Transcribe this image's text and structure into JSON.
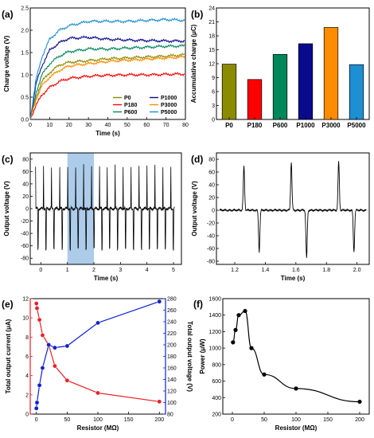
{
  "chart_data": [
    {
      "panel": "(a)",
      "type": "line",
      "xlabel": "Time (s)",
      "ylabel": "Charge voltage (V)",
      "xlim": [
        0,
        80
      ],
      "ylim": [
        0,
        2.5
      ],
      "xticks": [
        "0",
        "10",
        "20",
        "30",
        "40",
        "50",
        "60",
        "70",
        "80"
      ],
      "yticks": [
        "0.0",
        "0.5",
        "1.0",
        "1.5",
        "2.0",
        "2.5"
      ],
      "legend_position": "bottom-right",
      "legend_columns": 2,
      "series": [
        {
          "name": "P0",
          "color": "#8b8b00",
          "values": [
            [
              0,
              0
            ],
            [
              3,
              0.5
            ],
            [
              6,
              0.85
            ],
            [
              10,
              1.05
            ],
            [
              15,
              1.22
            ],
            [
              20,
              1.28
            ],
            [
              30,
              1.32
            ],
            [
              40,
              1.36
            ],
            [
              50,
              1.38
            ],
            [
              60,
              1.4
            ],
            [
              70,
              1.42
            ],
            [
              80,
              1.45
            ]
          ]
        },
        {
          "name": "P180",
          "color": "#ff0000",
          "values": [
            [
              0,
              0
            ],
            [
              3,
              0.32
            ],
            [
              6,
              0.55
            ],
            [
              10,
              0.72
            ],
            [
              15,
              0.85
            ],
            [
              20,
              0.92
            ],
            [
              30,
              0.97
            ],
            [
              40,
              0.99
            ],
            [
              50,
              1.0
            ],
            [
              60,
              1.0
            ],
            [
              70,
              1.01
            ],
            [
              80,
              1.02
            ]
          ]
        },
        {
          "name": "P600",
          "color": "#00875a",
          "values": [
            [
              0,
              0
            ],
            [
              3,
              0.6
            ],
            [
              6,
              1.0
            ],
            [
              10,
              1.25
            ],
            [
              15,
              1.42
            ],
            [
              20,
              1.52
            ],
            [
              30,
              1.58
            ],
            [
              40,
              1.58
            ],
            [
              50,
              1.6
            ],
            [
              60,
              1.62
            ],
            [
              70,
              1.64
            ],
            [
              80,
              1.65
            ]
          ]
        },
        {
          "name": "P1000",
          "color": "#0a0a8c",
          "values": [
            [
              0,
              0
            ],
            [
              3,
              0.8
            ],
            [
              6,
              1.2
            ],
            [
              10,
              1.55
            ],
            [
              15,
              1.72
            ],
            [
              20,
              1.82
            ],
            [
              30,
              1.84
            ],
            [
              40,
              1.8
            ],
            [
              50,
              1.78
            ],
            [
              60,
              1.77
            ],
            [
              70,
              1.76
            ],
            [
              80,
              1.76
            ]
          ]
        },
        {
          "name": "P3000",
          "color": "#ff8c00",
          "values": [
            [
              0,
              0
            ],
            [
              3,
              0.45
            ],
            [
              6,
              0.75
            ],
            [
              10,
              0.95
            ],
            [
              15,
              1.1
            ],
            [
              20,
              1.2
            ],
            [
              30,
              1.25
            ],
            [
              40,
              1.3
            ],
            [
              50,
              1.33
            ],
            [
              60,
              1.35
            ],
            [
              70,
              1.38
            ],
            [
              80,
              1.4
            ]
          ]
        },
        {
          "name": "P5000",
          "color": "#1e8fd2",
          "values": [
            [
              0,
              0
            ],
            [
              3,
              0.9
            ],
            [
              6,
              1.4
            ],
            [
              10,
              1.8
            ],
            [
              15,
              2.0
            ],
            [
              20,
              2.1
            ],
            [
              30,
              2.2
            ],
            [
              40,
              2.2
            ],
            [
              50,
              2.2
            ],
            [
              60,
              2.22
            ],
            [
              70,
              2.24
            ],
            [
              80,
              2.22
            ]
          ]
        }
      ]
    },
    {
      "panel": "(b)",
      "type": "bar",
      "ylabel": "Accumulative charge (μC)",
      "ylim": [
        0,
        24
      ],
      "yticks": [
        "0",
        "3",
        "6",
        "9",
        "12",
        "15",
        "18",
        "21",
        "24"
      ],
      "categories": [
        "P0",
        "P180",
        "P600",
        "P1000",
        "P3000",
        "P5000"
      ],
      "values": [
        11.9,
        8.6,
        14.0,
        16.3,
        19.8,
        11.8
      ],
      "colors": [
        "#8b8b00",
        "#ff0000",
        "#00875a",
        "#0a0a8c",
        "#ff8c00",
        "#1e8fd2"
      ]
    },
    {
      "panel": "(c)",
      "type": "line",
      "xlabel": "Time (s)",
      "ylabel": "Output voltage (V)",
      "xlim": [
        -0.4,
        5.3
      ],
      "ylim": [
        -90,
        90
      ],
      "xticks": [
        "0",
        "1",
        "2",
        "3",
        "4",
        "5"
      ],
      "yticks": [
        "-80",
        "-60",
        "-40",
        "-20",
        "0",
        "20",
        "40",
        "60",
        "80"
      ],
      "highlight_range": [
        1.0,
        2.0
      ],
      "pulse_period_s": 0.3,
      "positive_peak_v": 72,
      "negative_peak_v": -68
    },
    {
      "panel": "(d)",
      "type": "line",
      "xlabel": "Time (s)",
      "ylabel": "Output voltage (V)",
      "xlim": [
        1.08,
        2.08
      ],
      "ylim": [
        -85,
        90
      ],
      "xticks": [
        "1.2",
        "1.4",
        "1.6",
        "1.8",
        "2.0"
      ],
      "yticks": [
        "-80",
        "-60",
        "-40",
        "-20",
        "0",
        "20",
        "40",
        "60",
        "80"
      ],
      "peaks": [
        {
          "t": 1.26,
          "v": 70
        },
        {
          "t": 1.36,
          "v": -65
        },
        {
          "t": 1.57,
          "v": 76
        },
        {
          "t": 1.67,
          "v": -75
        },
        {
          "t": 1.88,
          "v": 76
        },
        {
          "t": 1.98,
          "v": -65
        }
      ]
    },
    {
      "panel": "(e)",
      "type": "scatter",
      "xlabel": "Resistor (MΩ)",
      "ylabel_left": "Total output current (μA)",
      "ylabel_right": "Total output voltage (V)",
      "xlim": [
        -10,
        210
      ],
      "ylim_left": [
        0,
        12
      ],
      "ylim_right": [
        80,
        280
      ],
      "xticks": [
        "0",
        "50",
        "100",
        "150",
        "200"
      ],
      "yticks_left": [
        "0",
        "2",
        "4",
        "6",
        "8",
        "10",
        "12"
      ],
      "yticks_right": [
        "80",
        "100",
        "120",
        "140",
        "160",
        "180",
        "200",
        "220",
        "240",
        "260",
        "280"
      ],
      "series": [
        {
          "name": "current",
          "axis": "left",
          "color": "#e8202a",
          "x": [
            0,
            1,
            5,
            10,
            20,
            30,
            50,
            100,
            200
          ],
          "y": [
            11.5,
            11.0,
            9.8,
            8.2,
            7.2,
            5.0,
            3.5,
            2.2,
            1.3
          ]
        },
        {
          "name": "voltage",
          "axis": "right",
          "color": "#1020d0",
          "x": [
            0,
            1,
            5,
            10,
            20,
            30,
            50,
            100,
            200
          ],
          "y": [
            90,
            100,
            130,
            160,
            200,
            195,
            198,
            238,
            275
          ]
        }
      ]
    },
    {
      "panel": "(f)",
      "type": "scatter",
      "xlabel": "Resistor (MΩ)",
      "ylabel": "Power (μW)",
      "xlim": [
        -15,
        215
      ],
      "ylim": [
        200,
        1600
      ],
      "xticks": [
        "0",
        "50",
        "100",
        "150",
        "200"
      ],
      "yticks": [
        "200",
        "400",
        "600",
        "800",
        "1000",
        "1200",
        "1400",
        "1600"
      ],
      "series": [
        {
          "name": "power",
          "color": "#000000",
          "x": [
            1,
            5,
            10,
            20,
            30,
            50,
            100,
            200
          ],
          "y": [
            1070,
            1220,
            1400,
            1450,
            1000,
            680,
            510,
            350
          ]
        }
      ]
    }
  ]
}
